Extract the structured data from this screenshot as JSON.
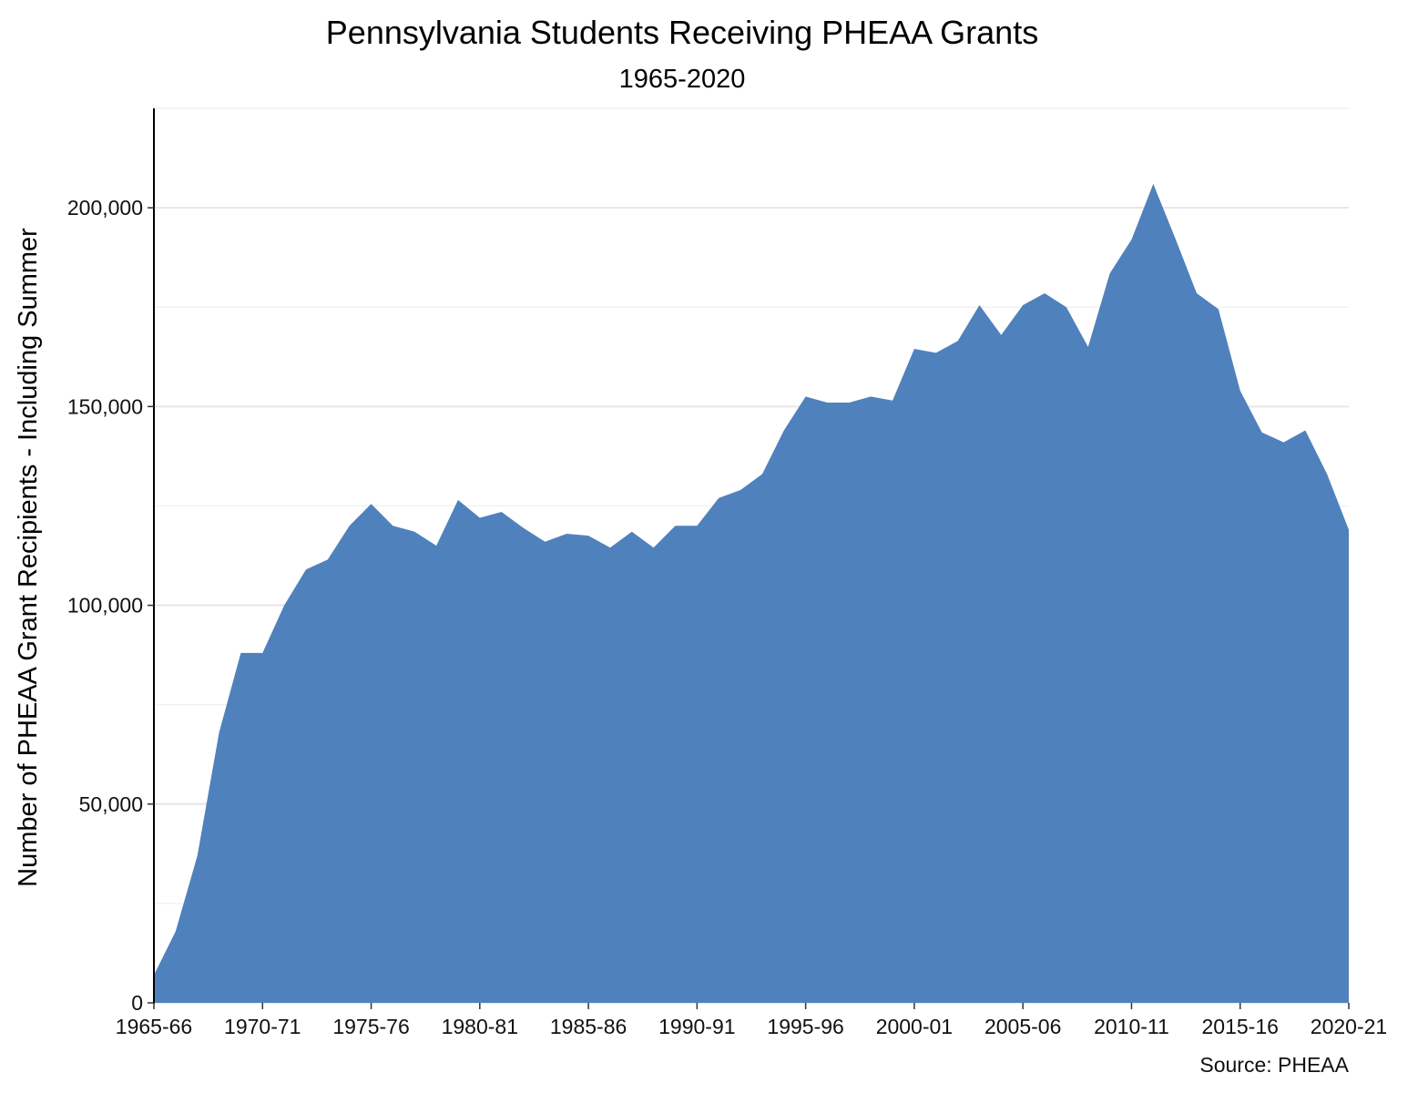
{
  "chart_data": {
    "type": "area",
    "title": "Pennsylvania Students Receiving PHEAA Grants",
    "subtitle": "1965-2020",
    "xlabel": "",
    "ylabel": "Number of PHEAA Grant Recipients - Including Summer",
    "caption": "Source: PHEAA",
    "fill_color": "#4F81BD",
    "grid": true,
    "ylim": [
      0,
      225000
    ],
    "y_ticks": [
      0,
      50000,
      100000,
      150000,
      200000
    ],
    "y_tick_labels": [
      "0",
      "50,000",
      "100,000",
      "150,000",
      "200,000"
    ],
    "x_tick_labels": [
      "1965-66",
      "1970-71",
      "1975-76",
      "1980-81",
      "1985-86",
      "1990-91",
      "1995-96",
      "2000-01",
      "2005-06",
      "2010-11",
      "2015-16",
      "2020-21"
    ],
    "x_start_year": 1965,
    "series": [
      {
        "values": [
          7000,
          18000,
          37000,
          68000,
          88000,
          88000,
          100000,
          109000,
          111500,
          120000,
          125500,
          120000,
          118500,
          115000,
          126500,
          122000,
          123500,
          119500,
          116000,
          118000,
          117500,
          114500,
          118500,
          114500,
          120000,
          120000,
          127000,
          129000,
          133000,
          144000,
          152500,
          151000,
          151000,
          152500,
          151500,
          164500,
          163500,
          166500,
          175500,
          168000,
          175500,
          178500,
          175000,
          165000,
          183500,
          192000,
          206000,
          192500,
          178500,
          174500,
          154000,
          143500,
          141000,
          144000,
          133000,
          119000
        ]
      }
    ]
  }
}
